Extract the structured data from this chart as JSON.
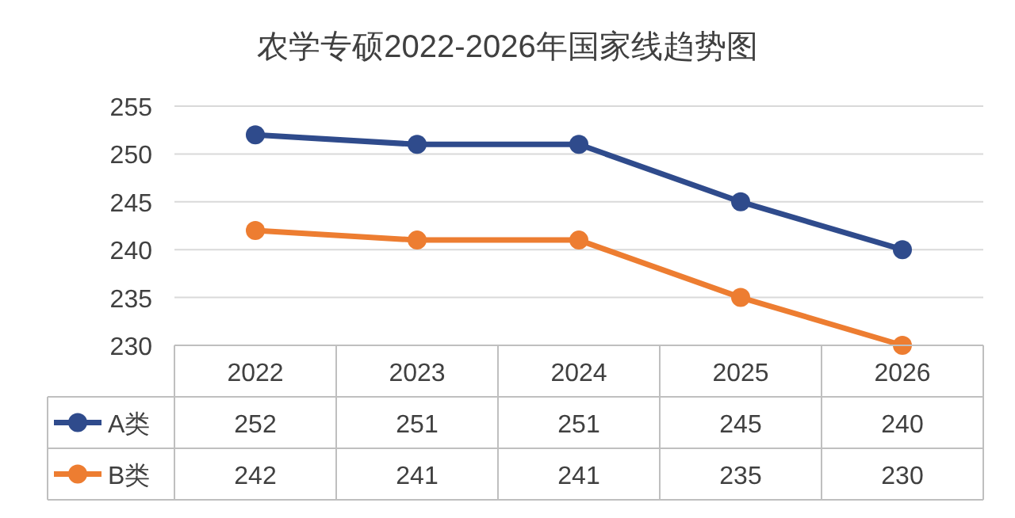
{
  "chart_data": {
    "type": "line",
    "title": "农学专硕2022-2026年国家线趋势图",
    "categories": [
      "2022",
      "2023",
      "2024",
      "2025",
      "2026"
    ],
    "series": [
      {
        "name": "A类",
        "color": "#2f4b8c",
        "values": [
          252,
          251,
          251,
          245,
          240
        ]
      },
      {
        "name": "B类",
        "color": "#ed7d31",
        "values": [
          242,
          241,
          241,
          235,
          230
        ]
      }
    ],
    "ylim": [
      230,
      255
    ],
    "yticks": [
      230,
      235,
      240,
      245,
      250,
      255
    ],
    "grid": "y",
    "legend": "bottom",
    "data_labels": true,
    "marker": "circle",
    "line_style": "solid"
  }
}
